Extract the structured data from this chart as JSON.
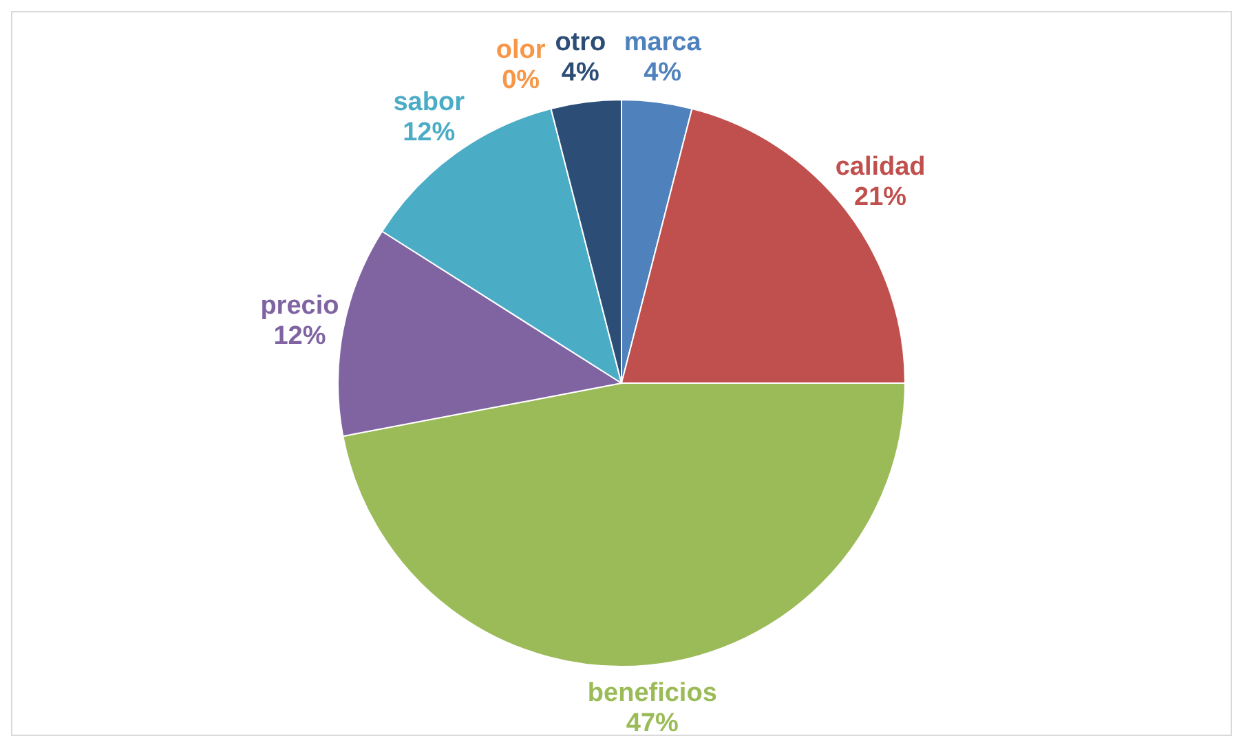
{
  "chart_data": {
    "type": "pie",
    "categories": [
      "marca",
      "calidad",
      "beneficios",
      "precio",
      "sabor",
      "olor",
      "otro"
    ],
    "values": [
      4,
      21,
      47,
      12,
      12,
      0,
      4
    ],
    "value_labels": [
      "4%",
      "21%",
      "47%",
      "12%",
      "12%",
      "0%",
      "4%"
    ],
    "colors": [
      "#4f81bd",
      "#c0504d",
      "#9bbb59",
      "#8064a2",
      "#4bacc6",
      "#f79646",
      "#2c4d75"
    ],
    "legend": false
  }
}
